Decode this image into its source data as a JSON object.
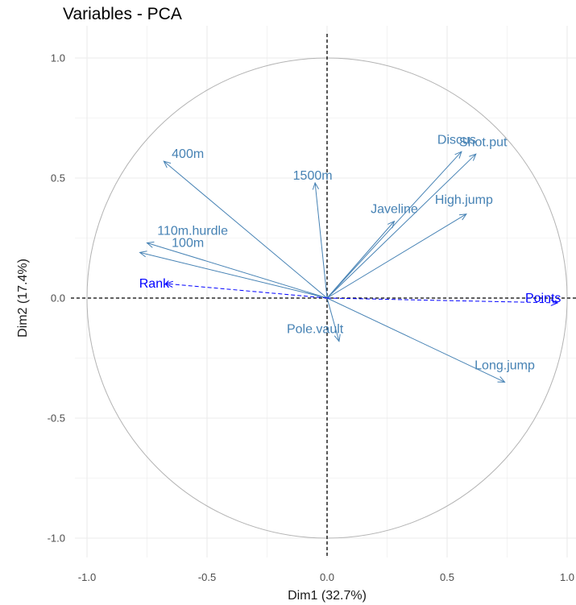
{
  "chart_data": {
    "type": "scatter",
    "title": "Variables - PCA",
    "xlabel": "Dim1 (32.7%)",
    "ylabel": "Dim2 (17.4%)",
    "xlim": [
      -1.0,
      1.0
    ],
    "ylim": [
      -1.0,
      1.0
    ],
    "x_ticks": [
      "-1.0",
      "-0.5",
      "0.0",
      "0.5",
      "1.0"
    ],
    "y_ticks": [
      "-1.0",
      "-0.5",
      "0.0",
      "0.5",
      "1.0"
    ],
    "grid": true,
    "correlation_circle": true,
    "colors": {
      "active": "#4682B4",
      "supplementary": "#0000FF",
      "circle": "#b3b3b3",
      "grid": "#ebebeb"
    },
    "variables": [
      {
        "name": "100m",
        "x": -0.78,
        "y": 0.19,
        "supplementary": false
      },
      {
        "name": "Long.jump",
        "x": 0.74,
        "y": -0.35,
        "supplementary": false
      },
      {
        "name": "Shot.put",
        "x": 0.62,
        "y": 0.6,
        "supplementary": false
      },
      {
        "name": "High.jump",
        "x": 0.58,
        "y": 0.35,
        "supplementary": false
      },
      {
        "name": "400m",
        "x": -0.68,
        "y": 0.57,
        "supplementary": false
      },
      {
        "name": "110m.hurdle",
        "x": -0.75,
        "y": 0.23,
        "supplementary": false
      },
      {
        "name": "Discus",
        "x": 0.56,
        "y": 0.61,
        "supplementary": false
      },
      {
        "name": "Pole.vault",
        "x": 0.05,
        "y": -0.18,
        "supplementary": false
      },
      {
        "name": "Javeline",
        "x": 0.28,
        "y": 0.32,
        "supplementary": false
      },
      {
        "name": "1500m",
        "x": -0.05,
        "y": 0.48,
        "supplementary": false
      },
      {
        "name": "Rank",
        "x": -0.67,
        "y": 0.06,
        "supplementary": true
      },
      {
        "name": "Points",
        "x": 0.96,
        "y": -0.02,
        "supplementary": true
      }
    ]
  }
}
